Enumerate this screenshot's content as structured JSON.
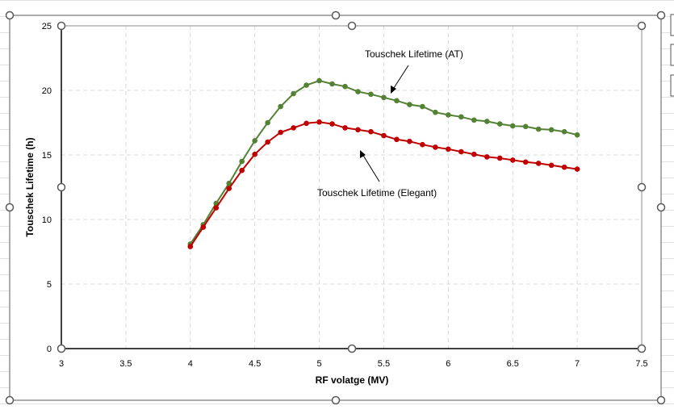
{
  "chart_data": {
    "type": "line",
    "title": "",
    "xlabel": "RF volatge (MV)",
    "ylabel": "Touschek Lifetime (h)",
    "xlim": [
      3,
      7.5
    ],
    "ylim": [
      0,
      25
    ],
    "xticks": [
      "3",
      "3.5",
      "4",
      "4.5",
      "5",
      "5.5",
      "6",
      "6.5",
      "7",
      "7.5"
    ],
    "yticks": [
      "0",
      "5",
      "10",
      "15",
      "20",
      "25"
    ],
    "grid": true,
    "x": [
      4.0,
      4.1,
      4.2,
      4.3,
      4.4,
      4.5,
      4.6,
      4.7,
      4.8,
      4.9,
      5.0,
      5.1,
      5.2,
      5.3,
      5.4,
      5.5,
      5.6,
      5.7,
      5.8,
      5.9,
      6.0,
      6.1,
      6.2,
      6.3,
      6.4,
      6.5,
      6.6,
      6.7,
      6.8,
      6.9,
      7.0
    ],
    "series": [
      {
        "name": "Touschek Lifetime (AT)",
        "color": "#548235",
        "values": [
          8.1,
          9.6,
          11.25,
          12.8,
          14.5,
          16.1,
          17.5,
          18.75,
          19.75,
          20.4,
          20.75,
          20.5,
          20.3,
          19.9,
          19.7,
          19.45,
          19.2,
          18.9,
          18.75,
          18.3,
          18.1,
          17.95,
          17.7,
          17.6,
          17.4,
          17.25,
          17.2,
          17.0,
          16.95,
          16.8,
          16.55
        ]
      },
      {
        "name": "Touschek Lifetime (Elegant)",
        "color": "#C00000",
        "values": [
          7.9,
          9.4,
          10.9,
          12.4,
          13.8,
          15.05,
          16.0,
          16.75,
          17.1,
          17.45,
          17.55,
          17.4,
          17.1,
          16.95,
          16.8,
          16.5,
          16.2,
          16.05,
          15.8,
          15.6,
          15.45,
          15.25,
          15.05,
          14.85,
          14.75,
          14.6,
          14.45,
          14.35,
          14.2,
          14.05,
          13.9
        ]
      }
    ],
    "annotations": [
      {
        "text": "Touschek Lifetime (AT)",
        "series": 0
      },
      {
        "text": "Touschek Lifetime (Elegant)",
        "series": 1
      }
    ]
  }
}
